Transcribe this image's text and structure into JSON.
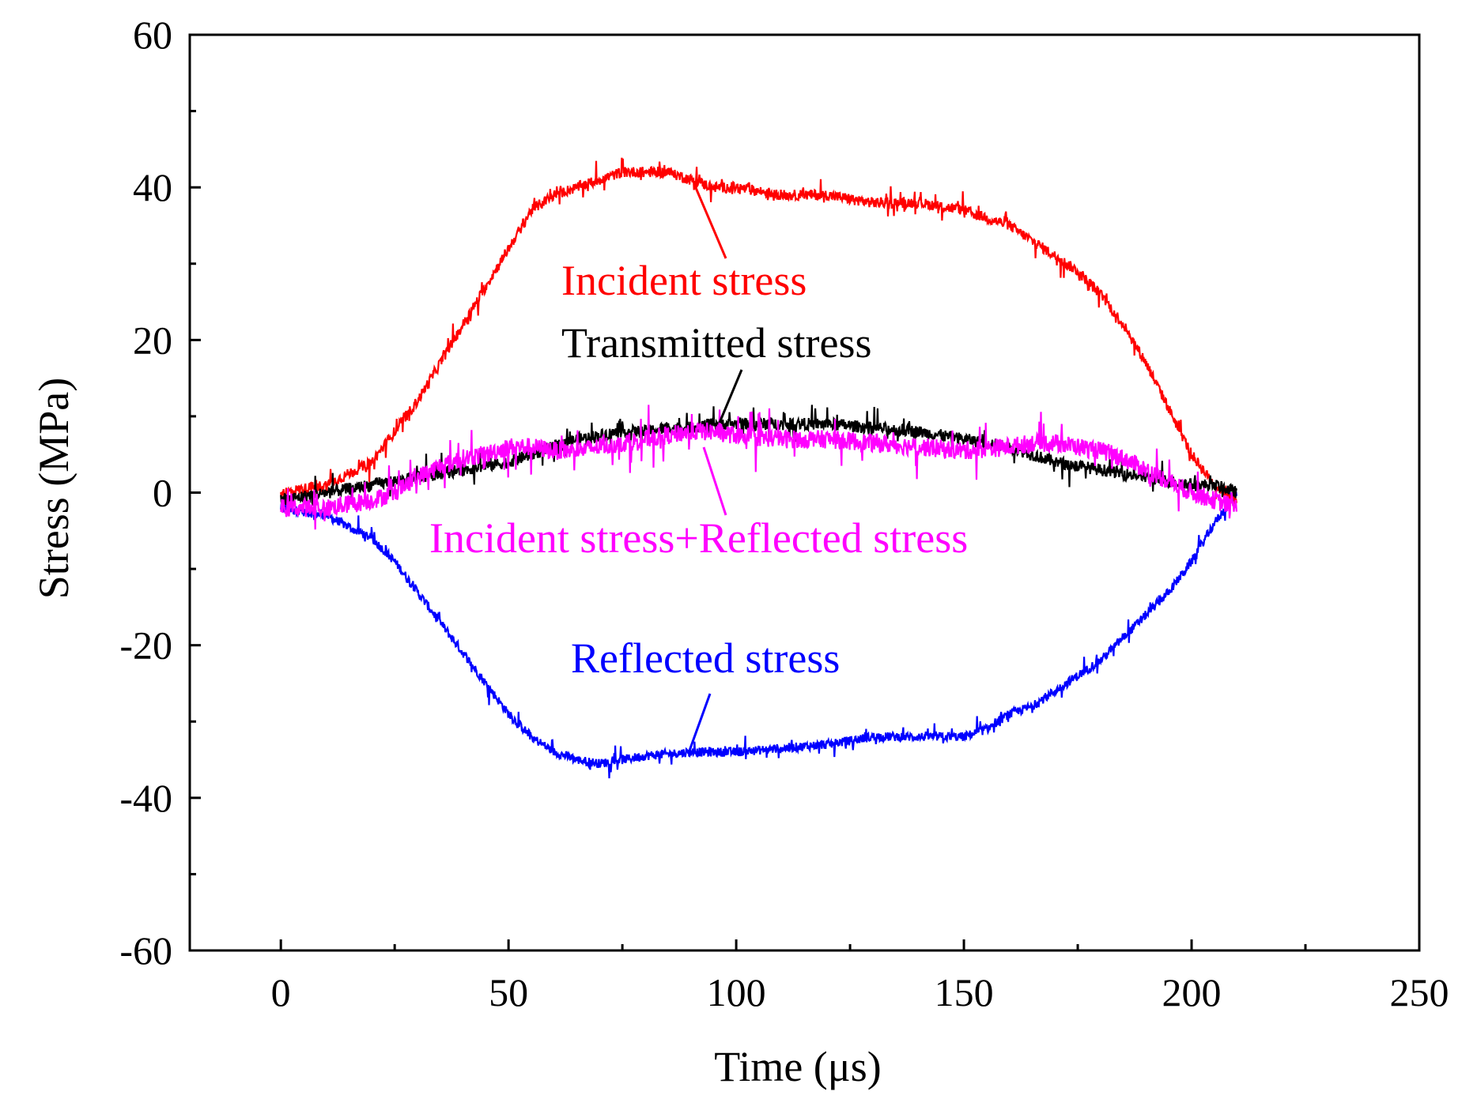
{
  "chart_data": {
    "type": "line",
    "title": "",
    "xlabel": "Time (μs)",
    "ylabel": "Stress (MPa)",
    "xlim": [
      -20,
      250
    ],
    "ylim": [
      -60,
      60
    ],
    "xticks": [
      0,
      50,
      100,
      150,
      200,
      250
    ],
    "yticks": [
      -60,
      -40,
      -20,
      0,
      20,
      40,
      60
    ],
    "xtick_labels": [
      "0",
      "50",
      "100",
      "150",
      "200",
      "250"
    ],
    "ytick_labels": [
      "-60",
      "-40",
      "-20",
      "0",
      "20",
      "40",
      "60"
    ],
    "series": [
      {
        "name": "Incident stress",
        "color": "#ff0000",
        "x": [
          0,
          10,
          20,
          25,
          30,
          35,
          40,
          45,
          50,
          55,
          60,
          65,
          70,
          75,
          80,
          85,
          90,
          95,
          100,
          110,
          120,
          130,
          140,
          150,
          160,
          165,
          170,
          175,
          180,
          185,
          190,
          195,
          200,
          205,
          210
        ],
        "y": [
          0,
          1,
          4,
          8,
          12,
          17,
          22,
          27,
          32,
          37,
          39,
          40,
          41,
          42,
          42,
          42,
          41,
          40,
          40,
          39,
          39,
          38,
          38,
          37,
          35,
          33,
          31,
          29,
          26,
          22,
          17,
          11,
          5,
          1,
          -1
        ]
      },
      {
        "name": "Transmitted stress",
        "color": "#000000",
        "x": [
          0,
          10,
          20,
          25,
          30,
          35,
          40,
          45,
          50,
          55,
          60,
          65,
          70,
          75,
          80,
          85,
          90,
          95,
          100,
          110,
          120,
          130,
          140,
          150,
          160,
          165,
          170,
          175,
          180,
          185,
          190,
          195,
          200,
          205,
          210
        ],
        "y": [
          -1,
          0,
          1,
          1.5,
          2,
          2.5,
          3,
          3.5,
          4,
          5,
          6,
          7,
          7.5,
          8,
          8,
          8.5,
          8.5,
          9,
          9,
          9,
          9,
          8.5,
          8,
          7,
          6,
          5,
          4,
          3.5,
          3,
          2.5,
          2,
          1.5,
          1,
          1,
          0
        ]
      },
      {
        "name": "Incident stress+Reflected stress",
        "color": "#ff00ff",
        "x": [
          0,
          10,
          20,
          25,
          30,
          35,
          40,
          45,
          50,
          55,
          60,
          65,
          70,
          75,
          80,
          85,
          90,
          95,
          100,
          110,
          120,
          130,
          140,
          150,
          160,
          165,
          170,
          175,
          180,
          185,
          190,
          195,
          200,
          205,
          210
        ],
        "y": [
          -2,
          -2,
          -1,
          0,
          2,
          3.5,
          4.5,
          5,
          6,
          6,
          5.5,
          5.5,
          6,
          6.5,
          7,
          7.5,
          8,
          8,
          7.5,
          7,
          7,
          6.5,
          6,
          5.5,
          6,
          6.5,
          6.5,
          6,
          5.5,
          4.5,
          3,
          1.5,
          0,
          -1,
          -2
        ]
      },
      {
        "name": "Reflected stress",
        "color": "#0000ff",
        "x": [
          0,
          10,
          20,
          25,
          30,
          35,
          40,
          45,
          50,
          55,
          60,
          65,
          70,
          75,
          80,
          90,
          100,
          110,
          120,
          130,
          140,
          150,
          155,
          160,
          165,
          170,
          175,
          180,
          185,
          190,
          195,
          200,
          205,
          210
        ],
        "y": [
          -2,
          -3,
          -6,
          -9,
          -13,
          -17,
          -21,
          -25,
          -29,
          -32,
          -34,
          -35,
          -35.5,
          -35,
          -34.5,
          -34,
          -34,
          -33.5,
          -33,
          -32,
          -32,
          -32,
          -31,
          -29,
          -28,
          -26,
          -24,
          -22,
          -19,
          -16,
          -13,
          -9,
          -4,
          0
        ]
      }
    ],
    "annotations": [
      {
        "text": "Incident stress",
        "color": "#ff0000"
      },
      {
        "text": "Transmitted stress",
        "color": "#000000"
      },
      {
        "text": "Incident stress+Reflected stress",
        "color": "#ff00ff"
      },
      {
        "text": "Reflected stress",
        "color": "#0000ff"
      }
    ]
  }
}
